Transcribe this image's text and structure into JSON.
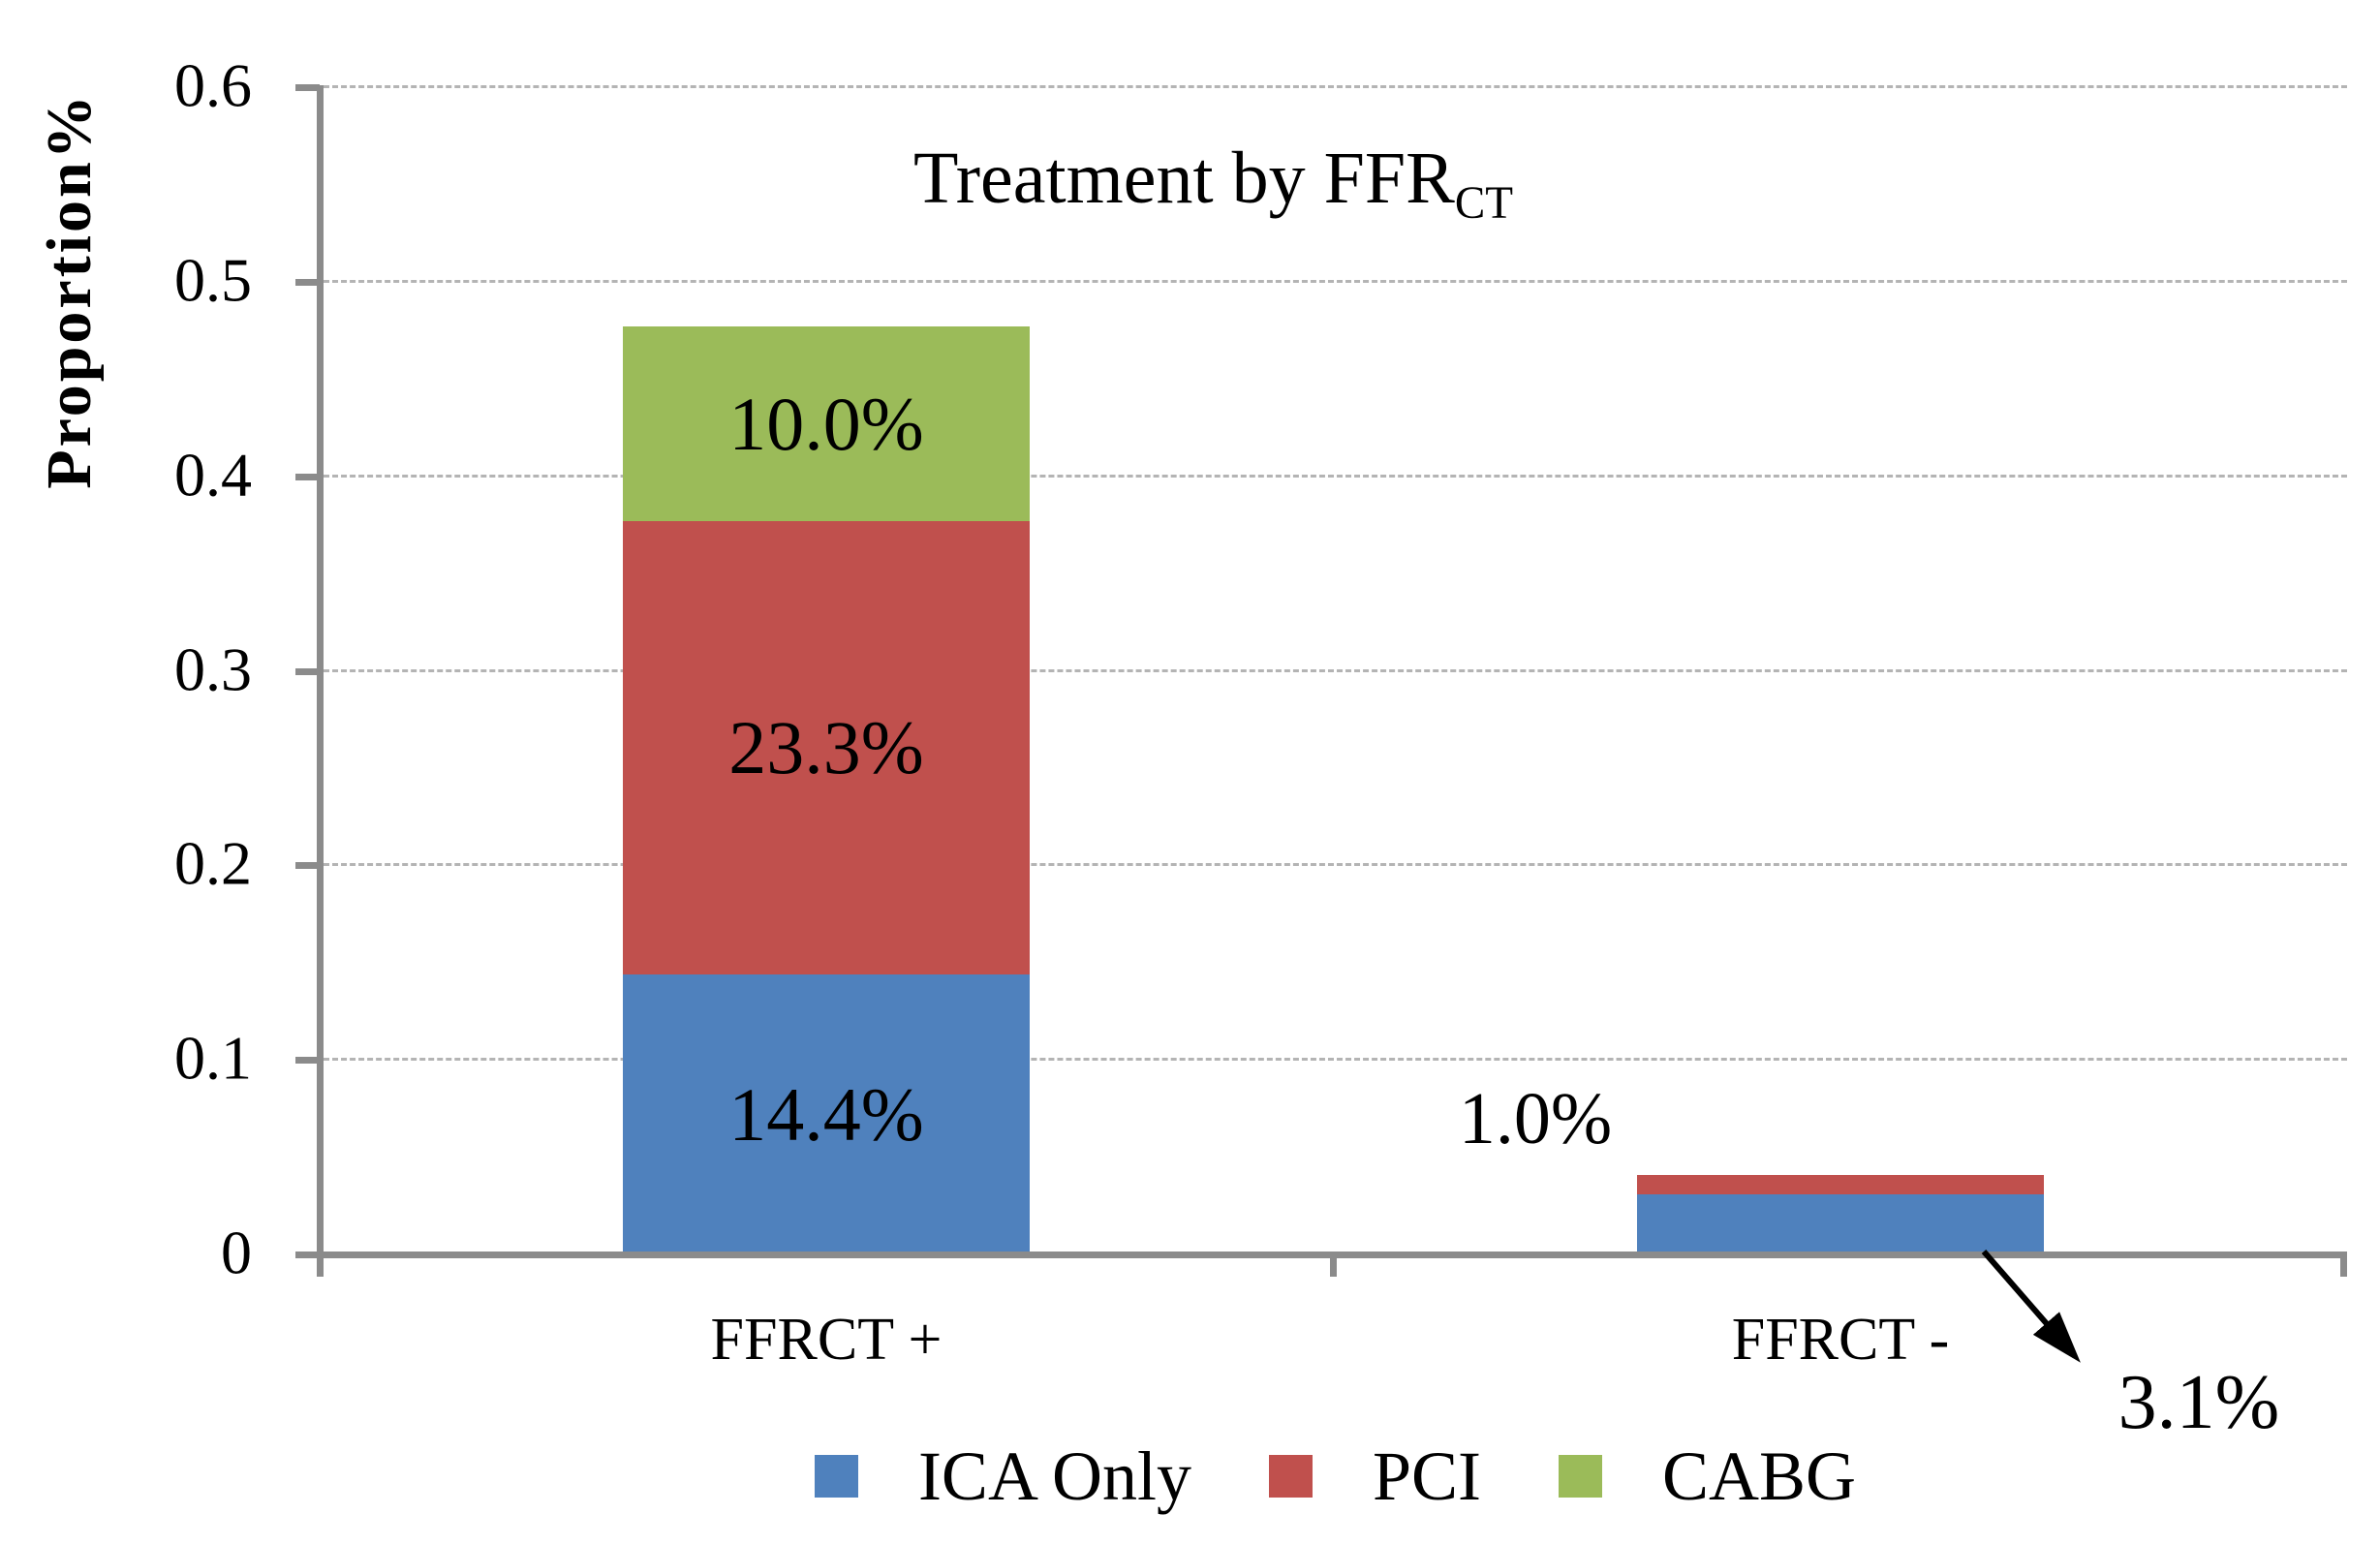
{
  "chart_data": {
    "type": "bar",
    "stacked": true,
    "title_main": "Treatment by FFR",
    "title_sub": "CT",
    "ylabel": "Proportion%",
    "ylim": [
      0,
      0.6
    ],
    "grid": "horizontal-dashed",
    "legend_position": "bottom",
    "yticks": [
      {
        "v": 0.0,
        "label": "0"
      },
      {
        "v": 0.1,
        "label": "0.1"
      },
      {
        "v": 0.2,
        "label": "0.2"
      },
      {
        "v": 0.3,
        "label": "0.3"
      },
      {
        "v": 0.4,
        "label": "0.4"
      },
      {
        "v": 0.5,
        "label": "0.5"
      },
      {
        "v": 0.6,
        "label": "0.6"
      }
    ],
    "categories": [
      "FFRCT +",
      "FFRCT -"
    ],
    "series": [
      {
        "name": "ICA Only",
        "color": "#4F81BD",
        "values": [
          0.144,
          0.031
        ],
        "inside_labels": [
          "14.4%",
          null
        ]
      },
      {
        "name": "PCI",
        "color": "#C0504D",
        "values": [
          0.233,
          0.01
        ],
        "inside_labels": [
          "23.3%",
          null
        ]
      },
      {
        "name": "CABG",
        "color": "#9BBB59",
        "values": [
          0.1,
          0.0
        ],
        "inside_labels": [
          "10.0%",
          null
        ]
      }
    ],
    "annotations": [
      {
        "text": "1.0%",
        "series": "PCI",
        "category": "FFRCT -"
      },
      {
        "text": "3.1%",
        "series": "ICA Only",
        "category": "FFRCT -"
      }
    ],
    "colors": {
      "axis": "#8b8b8b",
      "gridline": "#b4b4b4",
      "text": "#000000"
    }
  }
}
